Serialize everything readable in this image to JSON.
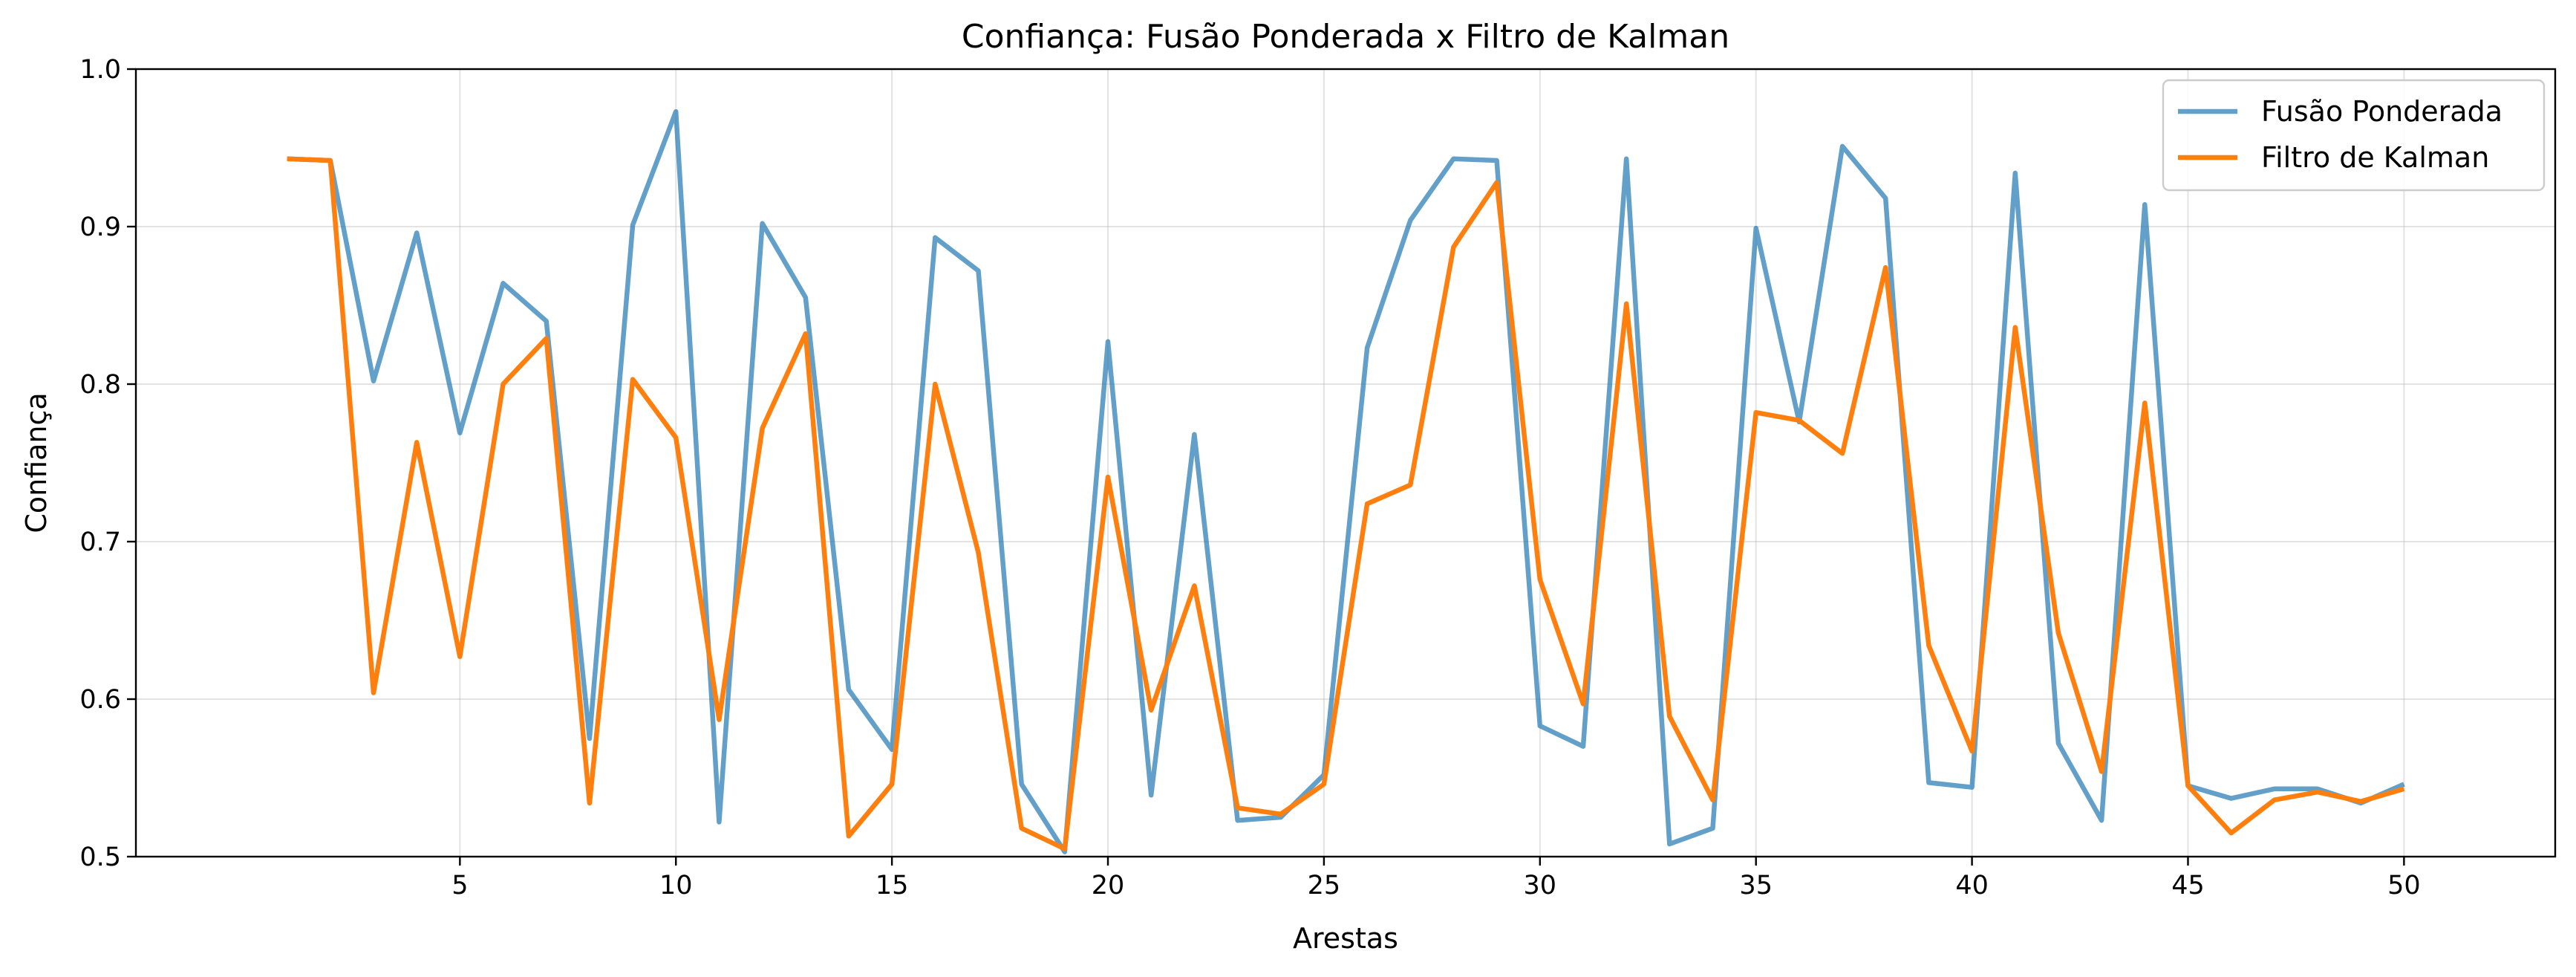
{
  "chart_data": {
    "type": "line",
    "title": "Confiança: Fusão Ponderada x Filtro de Kalman",
    "xlabel": "Arestas",
    "ylabel": "Confiança",
    "xlim": [
      -2.5,
      53.5
    ],
    "ylim": [
      0.5,
      1.0
    ],
    "xticks": [
      5,
      10,
      15,
      20,
      25,
      30,
      35,
      40,
      45,
      50
    ],
    "yticks": [
      0.5,
      0.6,
      0.7,
      0.8,
      0.9,
      1.0
    ],
    "ytick_labels": [
      "0.5",
      "0.6",
      "0.7",
      "0.8",
      "0.9",
      "1.0"
    ],
    "grid": true,
    "legend_position": "top-right",
    "x": [
      1,
      2,
      3,
      4,
      5,
      6,
      7,
      8,
      9,
      10,
      11,
      12,
      13,
      14,
      15,
      16,
      17,
      18,
      19,
      20,
      21,
      22,
      23,
      24,
      25,
      26,
      27,
      28,
      29,
      30,
      31,
      32,
      33,
      34,
      35,
      36,
      37,
      38,
      39,
      40,
      41,
      42,
      43,
      44,
      45,
      46,
      47,
      48,
      49,
      50
    ],
    "series": [
      {
        "name": "Fusão Ponderada",
        "color": "#1f77b4",
        "opacity": 0.7,
        "values": [
          0.943,
          0.942,
          0.802,
          0.896,
          0.769,
          0.864,
          0.84,
          0.575,
          0.901,
          0.973,
          0.522,
          0.902,
          0.855,
          0.606,
          0.568,
          0.893,
          0.872,
          0.546,
          0.503,
          0.827,
          0.539,
          0.768,
          0.523,
          0.525,
          0.552,
          0.823,
          0.904,
          0.943,
          0.942,
          0.583,
          0.57,
          0.943,
          0.508,
          0.518,
          0.899,
          0.776,
          0.951,
          0.918,
          0.547,
          0.544,
          0.934,
          0.572,
          0.523,
          0.914,
          0.545,
          0.537,
          0.543,
          0.543,
          0.534,
          0.546
        ]
      },
      {
        "name": "Filtro de Kalman",
        "color": "#ff7f0e",
        "opacity": 1.0,
        "values": [
          0.943,
          0.942,
          0.604,
          0.763,
          0.627,
          0.8,
          0.829,
          0.534,
          0.803,
          0.766,
          0.587,
          0.772,
          0.832,
          0.513,
          0.546,
          0.8,
          0.693,
          0.518,
          0.505,
          0.741,
          0.593,
          0.672,
          0.531,
          0.527,
          0.546,
          0.724,
          0.736,
          0.887,
          0.928,
          0.676,
          0.597,
          0.851,
          0.589,
          0.536,
          0.782,
          0.777,
          0.756,
          0.874,
          0.634,
          0.567,
          0.836,
          0.642,
          0.554,
          0.788,
          0.545,
          0.515,
          0.536,
          0.541,
          0.535,
          0.543
        ]
      }
    ]
  }
}
